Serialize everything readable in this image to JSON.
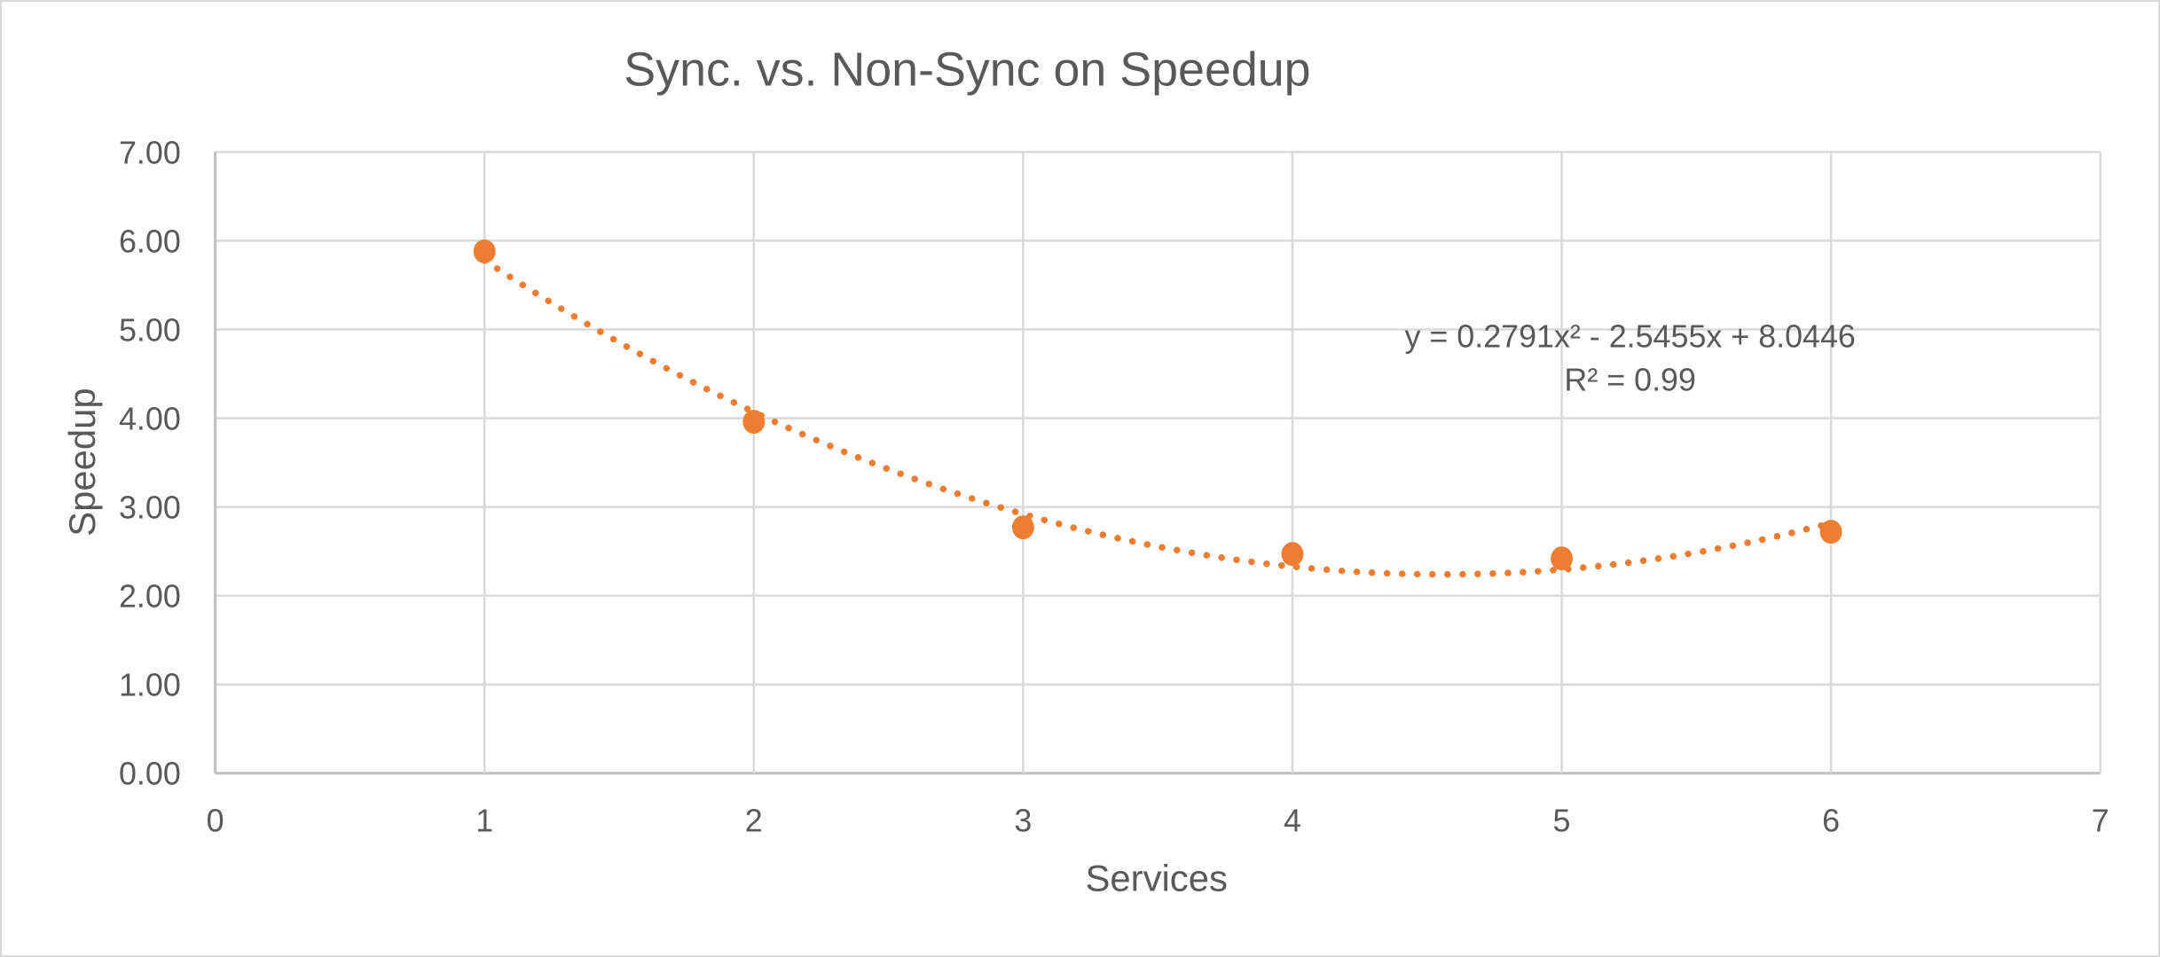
{
  "chart_data": {
    "type": "scatter",
    "title": "Sync. vs. Non-Sync on Speedup",
    "xlabel": "Services",
    "ylabel": "Speedup",
    "series": [
      {
        "name": "Speedup",
        "x": [
          1,
          2,
          3,
          4,
          5,
          6
        ],
        "y": [
          5.88,
          3.96,
          2.77,
          2.47,
          2.42,
          2.72
        ]
      }
    ],
    "xlim": [
      0,
      7
    ],
    "ylim": [
      0,
      7
    ],
    "x_tick_step": 1,
    "y_tick_step": 1,
    "x_ticks": [
      "0",
      "1",
      "2",
      "3",
      "4",
      "5",
      "6",
      "7"
    ],
    "y_ticks": [
      "0.00",
      "1.00",
      "2.00",
      "3.00",
      "4.00",
      "5.00",
      "6.00",
      "7.00"
    ],
    "grid": true,
    "legend": false,
    "marker_color": "#ED7D31",
    "trendline": {
      "type": "polynomial",
      "order": 2,
      "a": 0.2791,
      "b": -2.5455,
      "c": 8.0446,
      "domain": [
        1,
        6
      ],
      "style": "dotted",
      "color": "#ED7D31",
      "equation_label": "y = 0.2791x² - 2.5455x + 8.0446",
      "r_squared_label": "R² = 0.99"
    },
    "colors": {
      "accent": "#ED7D31",
      "text": "#595959",
      "gridline": "#D9D9D9",
      "axis_line": "#BFBFBF",
      "background": "#FFFFFF",
      "border": "#D9D9D9"
    }
  }
}
